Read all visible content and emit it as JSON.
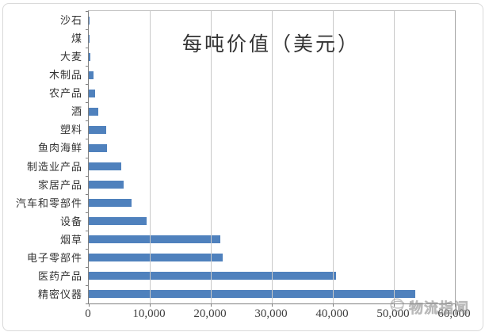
{
  "figure": {
    "title": "每吨价值（美元）",
    "watermark_text": "物流指闻"
  },
  "chart_data": {
    "type": "bar",
    "orientation": "horizontal",
    "title": "每吨价值（美元）",
    "categories": [
      "沙石",
      "煤",
      "大麦",
      "木制品",
      "农产品",
      "酒",
      "塑料",
      "鱼肉海鲜",
      "制造业产品",
      "家居产品",
      "汽车和零部件",
      "设备",
      "烟草",
      "电子零部件",
      "医药产品",
      "精密仪器"
    ],
    "values": [
      80,
      100,
      250,
      800,
      1000,
      1500,
      2800,
      3000,
      5300,
      5700,
      7000,
      9500,
      21500,
      22000,
      40500,
      53500
    ],
    "xlabel": "",
    "ylabel": "",
    "xlim": [
      0,
      60000
    ],
    "tick_interval": 10000,
    "x_tick_labels": [
      "0",
      "10,000",
      "20,000",
      "30,000",
      "40,000",
      "50,000",
      "60,000"
    ],
    "grid": true,
    "legend": false,
    "bar_color": "#4f81bd",
    "gridline_color": "#c9c9c9",
    "axis_color": "#808080"
  }
}
